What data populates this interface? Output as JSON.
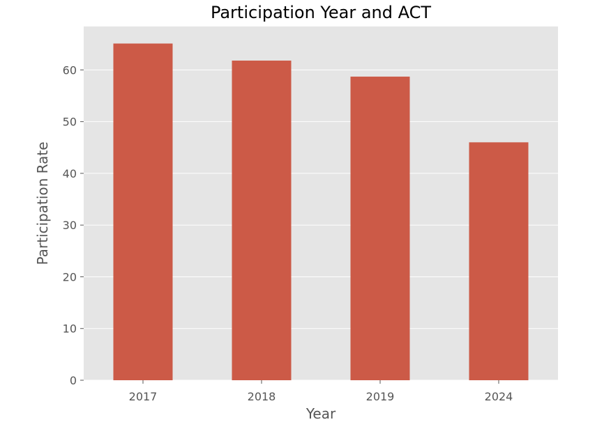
{
  "chart_data": {
    "type": "bar",
    "title": "Participation Year and ACT",
    "xlabel": "Year",
    "ylabel": "Participation Rate",
    "categories": [
      "2017",
      "2018",
      "2019",
      "2024"
    ],
    "values": [
      65.1,
      61.8,
      58.7,
      46.0
    ],
    "ylim": [
      0,
      68.4
    ],
    "yticks": [
      0,
      10,
      20,
      30,
      40,
      50,
      60
    ],
    "grid": true,
    "legend": "none",
    "colors": {
      "bar": "#CC5A47",
      "plot_background": "#E5E5E5",
      "grid": "#FFFFFF"
    }
  }
}
